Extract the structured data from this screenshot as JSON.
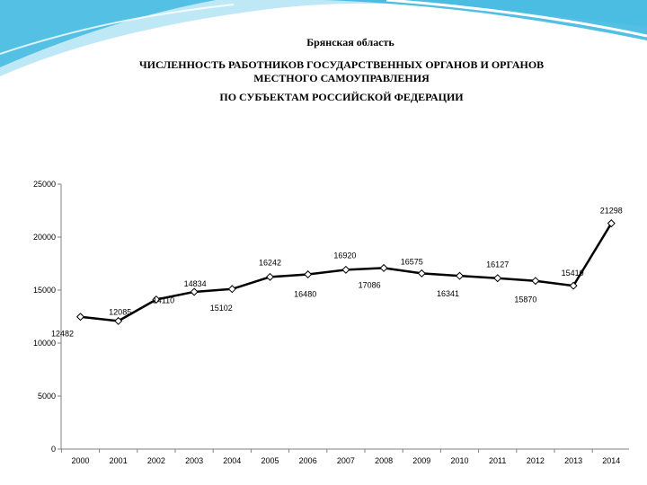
{
  "header": {
    "region": "Брянская область",
    "title_line1": "ЧИСЛЕННОСТЬ РАБОТНИКОВ ГОСУДАРСТВЕННЫХ ОРГАНОВ И ОРГАНОВ",
    "title_line2": "МЕСТНОГО САМОУПРАВЛЕНИЯ",
    "title_line3": "ПО СУБЪЕКТАМ РОССИЙСКОЙ ФЕДЕРАЦИИ"
  },
  "colors": {
    "line": "#000000",
    "marker_fill": "#ffffff",
    "axis": "#808080",
    "decor_primary": "#3fb8e0",
    "decor_light": "#bfe8f6"
  },
  "chart_data": {
    "type": "line",
    "categories": [
      "2000",
      "2001",
      "2002",
      "2003",
      "2004",
      "2005",
      "2006",
      "2007",
      "2008",
      "2009",
      "2010",
      "2011",
      "2012",
      "2013",
      "2014"
    ],
    "series": [
      {
        "values": [
          12482,
          12085,
          14110,
          14834,
          15102,
          16242,
          16480,
          16920,
          17086,
          16575,
          16341,
          16127,
          15870,
          15410,
          21298
        ]
      }
    ],
    "labels": [
      "12482",
      "12085",
      "14110",
      "14834",
      "15102",
      "16242",
      "16480",
      "16920",
      "17086",
      "16575",
      "16341",
      "16127",
      "15870",
      "15410",
      "21298"
    ],
    "ylim": [
      0,
      25000
    ],
    "yticks": [
      0,
      5000,
      10000,
      15000,
      20000,
      25000
    ],
    "grid": false,
    "legend": "none"
  }
}
